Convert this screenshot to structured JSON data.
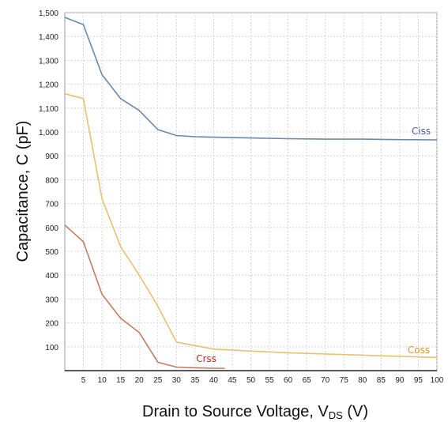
{
  "chart_data": {
    "type": "line",
    "title": "",
    "xlabel": "Drain to Source Voltage, V",
    "xlabel_sub": "DS",
    "xlabel_unit": " (V)",
    "ylabel": "Capacitance, C (pF)",
    "xlim": [
      0,
      100
    ],
    "ylim": [
      0,
      1500
    ],
    "x_ticks": [
      5,
      10,
      15,
      20,
      25,
      30,
      35,
      40,
      45,
      50,
      55,
      60,
      65,
      70,
      75,
      80,
      85,
      90,
      95,
      100
    ],
    "y_ticks": [
      100,
      200,
      300,
      400,
      500,
      600,
      700,
      800,
      900,
      1000,
      1100,
      1200,
      1300,
      1400,
      1500
    ],
    "y_tick_labels": [
      "100",
      "200",
      "300",
      "400",
      "500",
      "600",
      "700",
      "800",
      "900",
      "1,000",
      "1,100",
      "1,200",
      "1,300",
      "1,400",
      "1,500"
    ],
    "grid": true,
    "legend": "inline labels",
    "series": [
      {
        "name": "Ciss",
        "color": "#6d87a8",
        "label_color": "#4a5fa0",
        "x": [
          0,
          5,
          10,
          15,
          20,
          25,
          30,
          35,
          40,
          50,
          60,
          70,
          80,
          90,
          100
        ],
        "values": [
          1480,
          1450,
          1240,
          1140,
          1090,
          1010,
          985,
          980,
          978,
          975,
          972,
          970,
          970,
          968,
          967
        ]
      },
      {
        "name": "Coss",
        "color": "#e7c072",
        "label_color": "#d8962c",
        "x": [
          0,
          5,
          10,
          15,
          20,
          25,
          30,
          35,
          40,
          50,
          60,
          70,
          80,
          90,
          100
        ],
        "values": [
          1160,
          1140,
          720,
          520,
          400,
          270,
          120,
          105,
          90,
          82,
          75,
          70,
          65,
          60,
          55
        ]
      },
      {
        "name": "Crss",
        "color": "#c27c66",
        "label_color": "#cc2222",
        "x": [
          0,
          5,
          10,
          15,
          20,
          25,
          30,
          35,
          40,
          43
        ],
        "values": [
          610,
          540,
          320,
          220,
          160,
          35,
          15,
          12,
          10,
          10
        ]
      }
    ]
  }
}
